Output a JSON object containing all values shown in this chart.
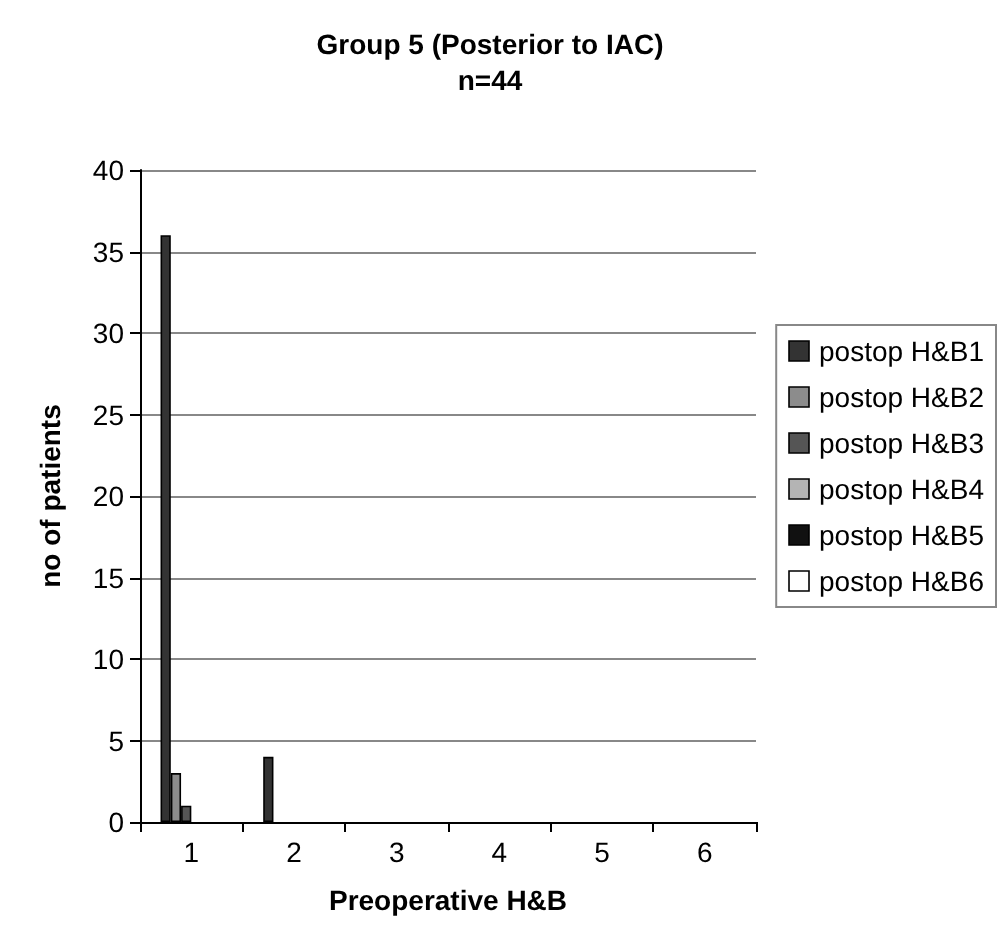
{
  "chart_data": {
    "type": "bar",
    "title": "Group 5 (Posterior to IAC)",
    "subtitle": "n=44",
    "xlabel": "Preoperative H&B",
    "ylabel": "no of patients",
    "categories": [
      "1",
      "2",
      "3",
      "4",
      "5",
      "6"
    ],
    "series": [
      {
        "name": "postop H&B1",
        "color": "#333333",
        "values": [
          36,
          4,
          0,
          0,
          0,
          0
        ]
      },
      {
        "name": "postop H&B2",
        "color": "#8c8c8c",
        "values": [
          3,
          0,
          0,
          0,
          0,
          0
        ]
      },
      {
        "name": "postop H&B3",
        "color": "#555555",
        "values": [
          1,
          0,
          0,
          0,
          0,
          0
        ]
      },
      {
        "name": "postop H&B4",
        "color": "#b4b4b4",
        "values": [
          0,
          0,
          0,
          0,
          0,
          0
        ]
      },
      {
        "name": "postop H&B5",
        "color": "#111111",
        "values": [
          0,
          0,
          0,
          0,
          0,
          0
        ]
      },
      {
        "name": "postop H&B6",
        "color": "#ffffff",
        "values": [
          0,
          0,
          0,
          0,
          0,
          0
        ]
      }
    ],
    "ylim": [
      0,
      40
    ],
    "yticks": [
      0,
      5,
      10,
      15,
      20,
      25,
      30,
      35,
      40
    ],
    "grid": "y",
    "legend": "right"
  }
}
